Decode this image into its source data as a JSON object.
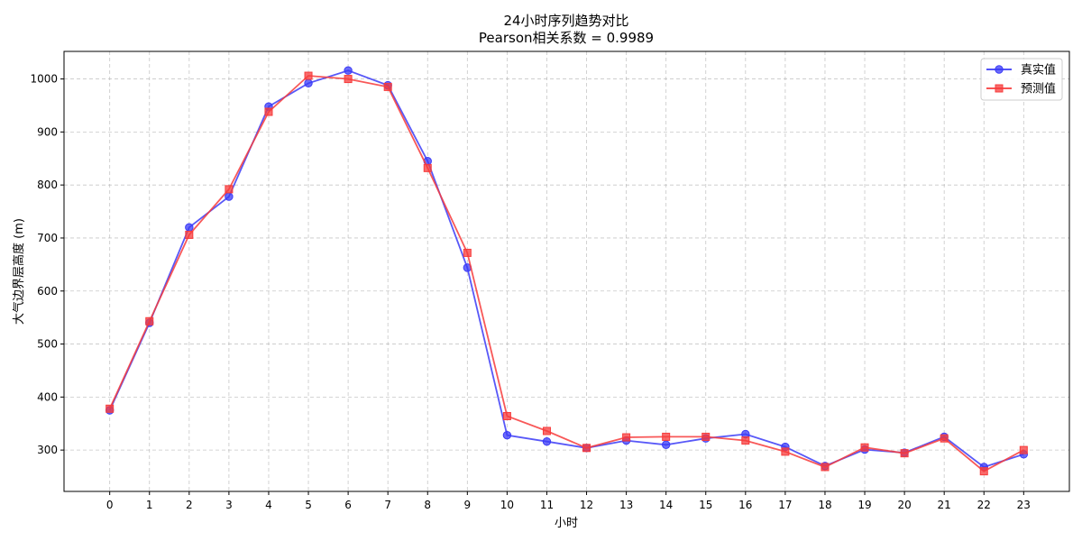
{
  "chart_data": {
    "type": "line",
    "title": "24小时序列趋势对比",
    "subtitle": "Pearson相关系数 = 0.9989",
    "xlabel": "小时",
    "ylabel": "大气边界层高度 (m)",
    "x": [
      0,
      1,
      2,
      3,
      4,
      5,
      6,
      7,
      8,
      9,
      10,
      11,
      12,
      13,
      14,
      15,
      16,
      17,
      18,
      19,
      20,
      21,
      22,
      23
    ],
    "x_ticks": [
      "0",
      "1",
      "2",
      "3",
      "4",
      "5",
      "6",
      "7",
      "8",
      "9",
      "10",
      "11",
      "12",
      "13",
      "14",
      "15",
      "16",
      "17",
      "18",
      "19",
      "20",
      "21",
      "22",
      "23"
    ],
    "y_ticks": [
      "300",
      "400",
      "500",
      "600",
      "700",
      "800",
      "900",
      "1000"
    ],
    "xlim": [
      -1.15,
      24.15
    ],
    "ylim": [
      222,
      1052
    ],
    "grid": true,
    "legend_position": "top-right",
    "series": [
      {
        "name": "真实值",
        "color": "#3b3bf7",
        "marker": "circle",
        "values": [
          375,
          540,
          720,
          778,
          948,
          992,
          1016,
          988,
          845,
          644,
          328,
          316,
          304,
          318,
          310,
          322,
          330,
          306,
          270,
          301,
          295,
          325,
          268,
          292
        ]
      },
      {
        "name": "预测值",
        "color": "#f73b3b",
        "marker": "square",
        "values": [
          378,
          543,
          706,
          792,
          938,
          1006,
          1000,
          985,
          832,
          672,
          364,
          336,
          304,
          324,
          325,
          325,
          318,
          297,
          268,
          305,
          294,
          322,
          260,
          300
        ]
      }
    ]
  }
}
